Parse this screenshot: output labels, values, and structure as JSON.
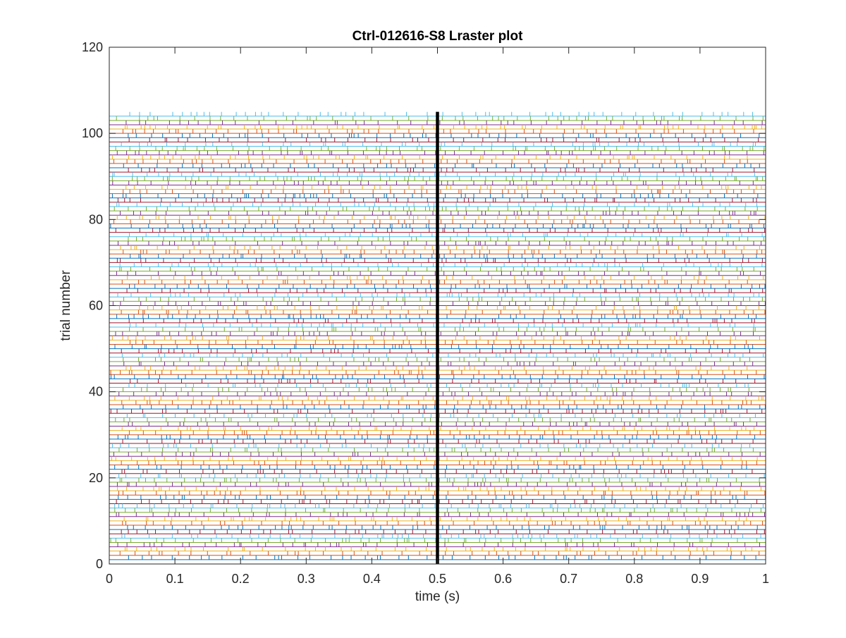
{
  "chart_data": {
    "type": "raster",
    "title": "Ctrl-012616-S8 Lraster plot",
    "xlabel": "time (s)",
    "ylabel": "trial number",
    "xlim": [
      0,
      1
    ],
    "ylim": [
      0,
      120
    ],
    "xticks": [
      0,
      0.1,
      0.2,
      0.3,
      0.4,
      0.5,
      0.6,
      0.7,
      0.8,
      0.9,
      1
    ],
    "xtick_labels": [
      "0",
      "0.1",
      "0.2",
      "0.3",
      "0.4",
      "0.5",
      "0.6",
      "0.7",
      "0.8",
      "0.9",
      "1"
    ],
    "yticks": [
      0,
      20,
      40,
      60,
      80,
      100,
      120
    ],
    "ytick_labels": [
      "0",
      "20",
      "40",
      "60",
      "80",
      "100",
      "120"
    ],
    "grid": false,
    "legend": "none",
    "n_trials": 104,
    "event_marker_time": 0.5,
    "trial_colors": [
      "#0072BD",
      "#D95319",
      "#EDB120",
      "#7E2F8E",
      "#77AC30",
      "#4DBEEE",
      "#A2142F"
    ],
    "event_marker_color": "#000000"
  }
}
